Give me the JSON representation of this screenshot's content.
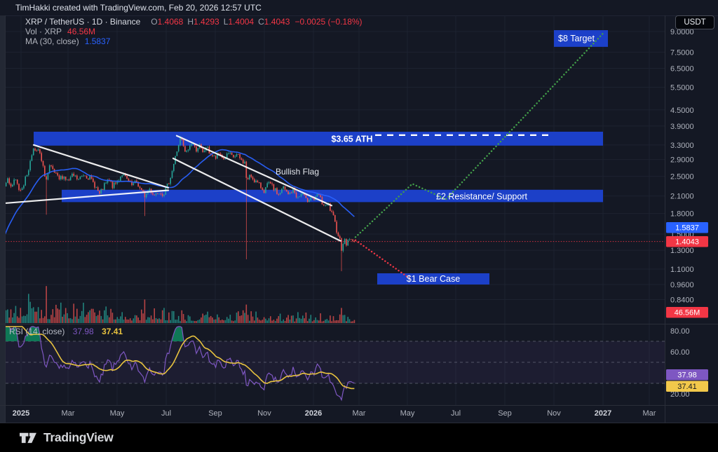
{
  "header": {
    "attribution": "TimHakki created with TradingView.com, Feb 20, 2026 12:57 UTC"
  },
  "toolbar": {
    "currency": "USDT"
  },
  "legend": {
    "symbol": "XRP / TetherUS · 1D · Binance",
    "ohlc": {
      "open_label": "O",
      "open": "1.4068",
      "high_label": "H",
      "high": "1.4293",
      "low_label": "L",
      "low": "1.4004",
      "close_label": "C",
      "close": "1.4043",
      "change": "−0.0025 (−0.18%)"
    },
    "volume_label": "Vol · XRP",
    "volume_value": "46.56M",
    "ma_label": "MA (30, close)",
    "ma_value": "1.5837"
  },
  "rsi_legend": {
    "label": "RSI (14, close)",
    "value": "37.98",
    "ma_value": "37.41"
  },
  "annotations": {
    "target": "$8 Target",
    "ath": "$3.65 ATH",
    "resistance": "£2 Resistance/ Support",
    "bullish_flag": "Bullish Flag",
    "bear_case": "$1 Bear Case"
  },
  "badges": {
    "ma": "1.5837",
    "last_price": "1.4043",
    "volume": "46.56M",
    "rsi": "37.98",
    "rsi_ma": "37.41"
  },
  "footer": {
    "brand": "TradingView"
  },
  "colors": {
    "bg": "#141824",
    "panel_border": "#2a2e39",
    "grid": "#1d2230",
    "text_primary": "#d1d4dc",
    "text_secondary": "#aeb2bc",
    "text_muted": "#787b86",
    "up": "#26a69a",
    "down": "#ef5350",
    "band_blue": "#1c40c8",
    "accent_blue": "#2962ff",
    "red": "#f23645",
    "ma_blue": "#2962ff",
    "rsi_purple": "#7e57c2",
    "rsi_yellow": "#e8c33f",
    "proj_green": "#43a04a",
    "badge_yellow": "#f2c84b",
    "overbought_green": "#0e8a5f",
    "left_strip": "#232834",
    "white": "#ffffff"
  },
  "chart_data": {
    "type": "candlestick",
    "symbol": "XRP/USDT",
    "exchange": "Binance",
    "timeframe": "1D",
    "price_scale_type": "log",
    "price_range_visible": [
      0.78,
      9.8
    ],
    "x_ticks": [
      "2025",
      "Mar",
      "May",
      "Jul",
      "Sep",
      "Nov",
      "2026",
      "Mar",
      "May",
      "Jul",
      "Sep",
      "Nov",
      "2027",
      "Mar"
    ],
    "price_ticks": [
      "9.0000",
      "7.5000",
      "6.5000",
      "5.5000",
      "4.5000",
      "3.9000",
      "3.3000",
      "2.9000",
      "2.5000",
      "2.1000",
      "1.8000",
      "1.5000",
      "1.3000",
      "1.1000",
      "0.9600",
      "0.8400"
    ],
    "rsi_ticks": [
      "80.00",
      "60.00",
      "20.00"
    ],
    "last_candle": {
      "open": 1.4068,
      "high": 1.4293,
      "low": 1.4004,
      "close": 1.4043,
      "change": -0.0025,
      "change_pct": -0.18
    },
    "volume_last": "46.56M",
    "indicators": [
      {
        "name": "MA",
        "length": 30,
        "source": "close",
        "value": 1.5837
      },
      {
        "name": "RSI",
        "length": 14,
        "source": "close",
        "value": 37.98,
        "ma_value": 37.41,
        "levels": [
          70,
          50,
          30
        ]
      }
    ],
    "price_path_anchors": [
      [
        3,
        2.25
      ],
      [
        10,
        2.45
      ],
      [
        16,
        2.28
      ],
      [
        22,
        2.42
      ],
      [
        28,
        2.2
      ],
      [
        34,
        2.35
      ],
      [
        40,
        2.62
      ],
      [
        45,
        3.0
      ],
      [
        48,
        3.3
      ],
      [
        51,
        3.02
      ],
      [
        55,
        3.18
      ],
      [
        60,
        2.78
      ],
      [
        66,
        2.42
      ],
      [
        71,
        2.72
      ],
      [
        78,
        2.56
      ],
      [
        84,
        2.42
      ],
      [
        90,
        2.52
      ],
      [
        97,
        2.38
      ],
      [
        104,
        2.52
      ],
      [
        112,
        2.42
      ],
      [
        120,
        2.56
      ],
      [
        128,
        2.46
      ],
      [
        136,
        2.3
      ],
      [
        142,
        2.12
      ],
      [
        148,
        2.28
      ],
      [
        155,
        2.42
      ],
      [
        161,
        2.28
      ],
      [
        167,
        2.38
      ],
      [
        174,
        2.56
      ],
      [
        181,
        2.42
      ],
      [
        188,
        2.3
      ],
      [
        195,
        2.38
      ],
      [
        201,
        2.2
      ],
      [
        207,
        2.1
      ],
      [
        213,
        2.24
      ],
      [
        220,
        2.12
      ],
      [
        227,
        2.2
      ],
      [
        233,
        2.14
      ],
      [
        239,
        2.3
      ],
      [
        245,
        2.6
      ],
      [
        250,
        2.95
      ],
      [
        255,
        3.35
      ],
      [
        258,
        3.55
      ],
      [
        261,
        3.25
      ],
      [
        265,
        3.05
      ],
      [
        269,
        3.2
      ],
      [
        274,
        3.4
      ],
      [
        279,
        3.15
      ],
      [
        284,
        3.3
      ],
      [
        289,
        3.05
      ],
      [
        294,
        3.25
      ],
      [
        300,
        3.05
      ],
      [
        307,
        2.92
      ],
      [
        313,
        3.08
      ],
      [
        319,
        2.9
      ],
      [
        326,
        3.05
      ],
      [
        332,
        2.95
      ],
      [
        338,
        3.02
      ],
      [
        344,
        2.88
      ],
      [
        349,
        2.82
      ],
      [
        352,
        2.38
      ],
      [
        357,
        2.52
      ],
      [
        363,
        2.42
      ],
      [
        369,
        2.32
      ],
      [
        377,
        2.2
      ],
      [
        383,
        2.35
      ],
      [
        390,
        2.25
      ],
      [
        397,
        2.12
      ],
      [
        404,
        2.26
      ],
      [
        411,
        2.12
      ],
      [
        418,
        2.22
      ],
      [
        425,
        2.06
      ],
      [
        431,
        2.16
      ],
      [
        437,
        2.0
      ],
      [
        443,
        2.1
      ],
      [
        449,
        2.02
      ],
      [
        454,
        2.14
      ],
      [
        459,
        1.98
      ],
      [
        464,
        1.9
      ],
      [
        468,
        1.96
      ],
      [
        472,
        1.82
      ],
      [
        476,
        1.72
      ],
      [
        480,
        1.56
      ],
      [
        484,
        1.46
      ],
      [
        487,
        1.32
      ],
      [
        490,
        1.43
      ],
      [
        494,
        1.37
      ],
      [
        498,
        1.46
      ],
      [
        502,
        1.39
      ],
      [
        506,
        1.4043
      ]
    ],
    "event_wicks": [
      [
        66,
        1.78
      ],
      [
        207,
        1.76
      ],
      [
        351,
        1.2
      ],
      [
        487,
        1.08
      ]
    ],
    "drawings": {
      "ath_zone": {
        "label": "$3.65 ATH",
        "price_top": 3.71,
        "price_bottom": 3.28,
        "x_start": 48,
        "x_end": 860,
        "dash_line_price": 3.6,
        "dash_x": [
          535,
          788
        ]
      },
      "resistance_zone": {
        "label": "£2 Resistance/ Support",
        "price_top": 2.22,
        "price_bottom": 1.99,
        "x_start": 88,
        "x_end": 860
      },
      "bear_box": {
        "label": "$1 Bear Case",
        "price_top": 1.06,
        "price_bottom": 0.96,
        "x_start": 538,
        "x_end": 698
      },
      "target_box": {
        "label": "$8 Target",
        "price_top": 9.11,
        "price_bottom": 7.86,
        "x_start": 790,
        "x_end": 867
      },
      "flag_label": {
        "text": "Bullish Flag",
        "x": 424,
        "price": 2.6
      },
      "trendlines": [
        {
          "name": "jan-downtrend",
          "points": [
            [
              48,
              3.3
            ],
            [
              240,
              2.26
            ]
          ]
        },
        {
          "name": "support-uptrend",
          "points": [
            [
              6,
              1.97
            ],
            [
              240,
              2.21
            ]
          ]
        },
        {
          "name": "flag-top",
          "points": [
            [
              252,
              3.58
            ],
            [
              473,
              1.93
            ]
          ]
        },
        {
          "name": "flag-bottom",
          "points": [
            [
              247,
              2.93
            ],
            [
              486,
              1.41
            ]
          ]
        }
      ],
      "projections": {
        "bull": [
          [
            507,
            1.46
          ],
          [
            588,
            2.34
          ],
          [
            636,
            2.04
          ],
          [
            860,
            8.85
          ]
        ],
        "bear": [
          [
            507,
            1.42
          ],
          [
            585,
            1.01
          ]
        ]
      },
      "price_line": 1.4043
    }
  }
}
